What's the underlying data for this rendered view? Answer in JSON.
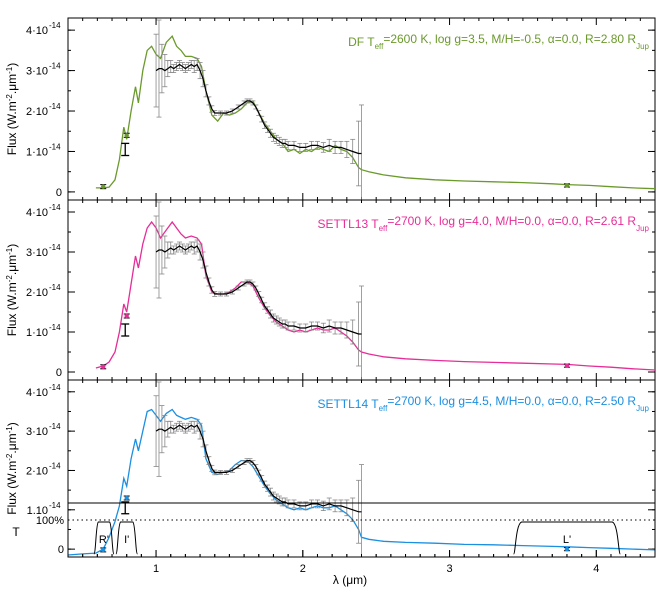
{
  "chart_data": {
    "type": "line",
    "x_axis": {
      "label": "λ (μm)",
      "range": [
        0.4,
        4.4
      ],
      "ticks": [
        1,
        2,
        3,
        4
      ],
      "tick_labels": [
        "1",
        "2",
        "3",
        "4"
      ]
    },
    "flux_axis": {
      "label_main": "Flux (W.m",
      "label_sup1": "-2",
      "label_mid": ".μm",
      "label_sup2": "-1",
      "label_end": ")",
      "range": [
        -2e-15,
        4.3e-14
      ],
      "ticks": [
        0,
        1e-14,
        2e-14,
        3e-14,
        4e-14
      ]
    },
    "panels": [
      {
        "annotation": {
          "model": "DF",
          "teff": "2600 K",
          "logg": "3.5",
          "mh": "-0.5",
          "alpha": "0.0",
          "radius": "2.80",
          "color": "#6b9a2c"
        },
        "tick_labels": [
          "0",
          "1·10",
          "2·10",
          "3·10",
          "4·10"
        ],
        "tick_exps": [
          "",
          "-14",
          "-14",
          "-14",
          "-14"
        ],
        "model_color": "#6b9a2c",
        "model_spectrum": {
          "x": [
            0.59,
            0.64,
            0.68,
            0.72,
            0.75,
            0.78,
            0.8,
            0.83,
            0.86,
            0.88,
            0.91,
            0.94,
            0.97,
            1.0,
            1.03,
            1.07,
            1.11,
            1.14,
            1.17,
            1.2,
            1.24,
            1.28,
            1.31,
            1.34,
            1.38,
            1.42,
            1.46,
            1.5,
            1.54,
            1.58,
            1.62,
            1.66,
            1.7,
            1.74,
            1.78,
            1.82,
            1.86,
            1.9,
            1.94,
            1.98,
            2.02,
            2.06,
            2.1,
            2.14,
            2.18,
            2.22,
            2.26,
            2.3,
            2.34,
            2.38,
            2.4,
            2.45,
            2.55,
            2.7,
            2.9,
            3.1,
            3.3,
            3.5,
            3.7,
            3.8,
            3.95,
            4.1,
            4.25,
            4.4
          ],
          "y": [
            1e-15,
            1e-15,
            1.2e-15,
            3e-15,
            8e-15,
            1.6e-14,
            1.3e-14,
            2e-14,
            2.6e-14,
            2.2e-14,
            3e-14,
            3.5e-14,
            3.6e-14,
            3.4e-14,
            3.3e-14,
            3.7e-14,
            3.85e-14,
            3.6e-14,
            3.5e-14,
            3.35e-14,
            3.35e-14,
            3.3e-14,
            3.1e-14,
            2.5e-14,
            1.9e-14,
            1.75e-14,
            1.95e-14,
            1.9e-14,
            1.95e-14,
            2.05e-14,
            2.2e-14,
            2.25e-14,
            1.95e-14,
            1.7e-14,
            1.5e-14,
            1.3e-14,
            1.2e-14,
            1e-14,
            1.05e-14,
            9.5e-15,
            1.05e-14,
            1e-14,
            1.1e-14,
            1.05e-14,
            1e-14,
            1.15e-14,
            1.05e-14,
            1e-14,
            8.5e-15,
            6e-15,
            5.5e-15,
            5e-15,
            4.2e-15,
            3.5e-15,
            3e-15,
            2.7e-15,
            2.5e-15,
            2.3e-15,
            2e-15,
            1.8e-15,
            1.6e-15,
            1.3e-15,
            1e-15,
            8e-16
          ]
        },
        "photometry": [
          {
            "x": 0.64,
            "y": 1.3e-15,
            "err": 5e-16
          },
          {
            "x": 0.8,
            "y": 1.4e-14,
            "err": 5e-16
          },
          {
            "x": 3.8,
            "y": 1.6e-15,
            "err": 4e-16
          }
        ]
      },
      {
        "annotation": {
          "model": "SETTL13",
          "teff": "2700 K",
          "logg": "4.0",
          "mh": "0.0",
          "alpha": "0.0",
          "radius": "2.61",
          "color": "#e62d98"
        },
        "tick_labels": [
          "0",
          "1·10",
          "2·10",
          "3·10",
          "4·10"
        ],
        "tick_exps": [
          "",
          "-14",
          "-14",
          "-14",
          "-14"
        ],
        "model_color": "#e62d98",
        "model_spectrum": {
          "x": [
            0.59,
            0.64,
            0.68,
            0.72,
            0.75,
            0.78,
            0.8,
            0.83,
            0.86,
            0.88,
            0.91,
            0.94,
            0.97,
            1.0,
            1.03,
            1.07,
            1.11,
            1.14,
            1.17,
            1.2,
            1.24,
            1.28,
            1.31,
            1.34,
            1.38,
            1.42,
            1.46,
            1.5,
            1.54,
            1.58,
            1.62,
            1.66,
            1.7,
            1.74,
            1.78,
            1.82,
            1.86,
            1.9,
            1.94,
            1.98,
            2.02,
            2.06,
            2.1,
            2.14,
            2.18,
            2.22,
            2.26,
            2.3,
            2.34,
            2.38,
            2.4,
            2.45,
            2.55,
            2.7,
            2.9,
            3.1,
            3.3,
            3.5,
            3.7,
            3.8,
            3.95,
            4.1,
            4.25,
            4.4
          ],
          "y": [
            1e-15,
            1.5e-15,
            2.5e-15,
            5e-15,
            1e-14,
            1.7e-14,
            1.5e-14,
            2.2e-14,
            2.9e-14,
            2.6e-14,
            3.2e-14,
            3.6e-14,
            3.75e-14,
            3.6e-14,
            3.35e-14,
            3.55e-14,
            3.75e-14,
            3.6e-14,
            3.45e-14,
            3.35e-14,
            3.4e-14,
            3.35e-14,
            3.2e-14,
            2.4e-14,
            2e-14,
            1.95e-14,
            1.95e-14,
            2e-14,
            2.1e-14,
            2.25e-14,
            2.25e-14,
            2.15e-14,
            1.85e-14,
            1.6e-14,
            1.4e-14,
            1.25e-14,
            1.15e-14,
            1.05e-14,
            1e-14,
            1.05e-14,
            1e-14,
            1.05e-14,
            1.1e-14,
            1.05e-14,
            1.05e-14,
            1.1e-14,
            1e-14,
            9e-15,
            7.5e-15,
            5.5e-15,
            5e-15,
            4.5e-15,
            3.8e-15,
            3.3e-15,
            2.9e-15,
            2.6e-15,
            2.4e-15,
            2.2e-15,
            2e-15,
            1.9e-15,
            1.5e-15,
            1.2e-15,
            8e-16,
            5e-16
          ]
        },
        "photometry": [
          {
            "x": 0.64,
            "y": 1.3e-15,
            "err": 5e-16
          },
          {
            "x": 0.8,
            "y": 1.4e-14,
            "err": 5e-16
          },
          {
            "x": 3.8,
            "y": 1.6e-15,
            "err": 4e-16
          }
        ]
      },
      {
        "annotation": {
          "model": "SETTL14",
          "teff": "2700 K",
          "logg": "4.5",
          "mh": "0.0",
          "alpha": "0.0",
          "radius": "2.50",
          "color": "#1b8fe0"
        },
        "tick_labels": [
          "",
          "1.10",
          "2·10",
          "3·10",
          "4·10"
        ],
        "tick_exps": [
          "",
          "-14",
          "-14",
          "-14",
          "-14"
        ],
        "model_color": "#1b8fe0",
        "model_spectrum": {
          "x": [
            0.4,
            0.5,
            0.59,
            0.64,
            0.68,
            0.72,
            0.75,
            0.78,
            0.8,
            0.83,
            0.86,
            0.88,
            0.91,
            0.94,
            0.97,
            1.0,
            1.03,
            1.07,
            1.11,
            1.14,
            1.17,
            1.2,
            1.24,
            1.28,
            1.31,
            1.34,
            1.38,
            1.42,
            1.46,
            1.5,
            1.54,
            1.58,
            1.62,
            1.66,
            1.7,
            1.74,
            1.78,
            1.82,
            1.86,
            1.9,
            1.94,
            1.98,
            2.02,
            2.06,
            2.1,
            2.14,
            2.18,
            2.22,
            2.26,
            2.3,
            2.34,
            2.38,
            2.4,
            2.45,
            2.55,
            2.7,
            2.9,
            3.1,
            3.3,
            3.5,
            3.7,
            3.8,
            3.95,
            4.1,
            4.25,
            4.4
          ],
          "y": [
            -1.5e-15,
            -1.2e-15,
            -1e-15,
            0.0,
            3e-15,
            7e-15,
            1.1e-14,
            1.8e-14,
            1.6e-14,
            2.3e-14,
            2.8e-14,
            2.5e-14,
            3e-14,
            3.5e-14,
            3.55e-14,
            3.4e-14,
            3.25e-14,
            3.45e-14,
            3.55e-14,
            3.4e-14,
            3.35e-14,
            3.3e-14,
            3.35e-14,
            3.3e-14,
            3.15e-14,
            2.3e-14,
            1.95e-14,
            1.9e-14,
            1.95e-14,
            2e-14,
            2.15e-14,
            2.25e-14,
            2.25e-14,
            2.1e-14,
            1.85e-14,
            1.6e-14,
            1.4e-14,
            1.25e-14,
            1.15e-14,
            1.05e-14,
            1e-14,
            1.05e-14,
            1e-14,
            1.05e-14,
            1.1e-14,
            1.05e-14,
            1.05e-14,
            1.1e-14,
            1e-14,
            9e-15,
            7.5e-15,
            5e-15,
            3e-15,
            2.5e-15,
            2e-15,
            1.7e-15,
            1.5e-15,
            1.2e-15,
            1.1e-15,
            9e-16,
            7e-16,
            6e-16,
            4e-16,
            2e-16,
            0.0,
            -2e-16
          ]
        },
        "photometry": [
          {
            "x": 0.64,
            "y": -2e-16,
            "err": 5e-16
          },
          {
            "x": 0.8,
            "y": 1.3e-14,
            "err": 5e-16
          },
          {
            "x": 3.8,
            "y": 0.0,
            "err": 4e-16
          }
        ]
      }
    ],
    "observed_spectrum": {
      "x": [
        1.0,
        1.02,
        1.04,
        1.06,
        1.08,
        1.1,
        1.12,
        1.14,
        1.16,
        1.18,
        1.2,
        1.22,
        1.24,
        1.26,
        1.28,
        1.3,
        1.32,
        1.34,
        1.36,
        1.38,
        1.4,
        1.44,
        1.48,
        1.52,
        1.56,
        1.6,
        1.62,
        1.64,
        1.66,
        1.68,
        1.7,
        1.72,
        1.74,
        1.76,
        1.78,
        1.8,
        1.82,
        1.84,
        1.86,
        1.88,
        1.9,
        1.94,
        1.98,
        2.02,
        2.06,
        2.1,
        2.14,
        2.18,
        2.22,
        2.26,
        2.3,
        2.34,
        2.38,
        2.4
      ],
      "y": [
        3e-14,
        3.05e-14,
        3.05e-14,
        3e-14,
        3.05e-14,
        3.1e-14,
        3.05e-14,
        3.1e-14,
        3.15e-14,
        3.1e-14,
        3.05e-14,
        3.1e-14,
        3.15e-14,
        3.1e-14,
        3.15e-14,
        3e-14,
        2.8e-14,
        2.5e-14,
        2.25e-14,
        2.05e-14,
        1.95e-14,
        1.95e-14,
        1.95e-14,
        2e-14,
        2.1e-14,
        2.2e-14,
        2.25e-14,
        2.25e-14,
        2.2e-14,
        2.1e-14,
        1.95e-14,
        1.8e-14,
        1.65e-14,
        1.55e-14,
        1.45e-14,
        1.35e-14,
        1.3e-14,
        1.25e-14,
        1.2e-14,
        1.2e-14,
        1.15e-14,
        1.15e-14,
        1.1e-14,
        1.1e-14,
        1.15e-14,
        1.15e-14,
        1.1e-14,
        1.15e-14,
        1.1e-14,
        1.1e-14,
        1.05e-14,
        1e-14,
        9.5e-15,
        9.5e-15
      ],
      "err": [
        9e-15,
        1.2e-14,
        6e-15,
        4e-15,
        2e-15,
        1.5e-15,
        1e-15,
        1e-15,
        1e-15,
        1e-15,
        1e-15,
        1e-15,
        1e-15,
        1.5e-15,
        1.5e-15,
        2e-15,
        2e-15,
        1.5e-15,
        1e-15,
        8e-16,
        6e-16,
        5e-16,
        5e-16,
        5e-16,
        5e-16,
        5e-16,
        5e-16,
        5e-16,
        5e-16,
        5e-16,
        6e-16,
        7e-16,
        8e-16,
        8e-16,
        1e-15,
        1e-15,
        1e-15,
        1e-15,
        1e-15,
        1e-15,
        1e-15,
        1e-15,
        1e-15,
        1e-15,
        1e-15,
        1e-15,
        1.2e-15,
        1.5e-15,
        1.5e-15,
        1.5e-15,
        2e-15,
        3e-15,
        8e-15,
        1.2e-14
      ]
    },
    "filter_panel": {
      "ylabel": "T",
      "ytick_labels": [
        "100%",
        "0"
      ],
      "filters": [
        {
          "name": "R'",
          "start": 0.59,
          "end": 0.7
        },
        {
          "name": "I'",
          "start": 0.74,
          "end": 0.86
        },
        {
          "name": "L'",
          "start": 3.45,
          "end": 4.15
        }
      ]
    }
  }
}
